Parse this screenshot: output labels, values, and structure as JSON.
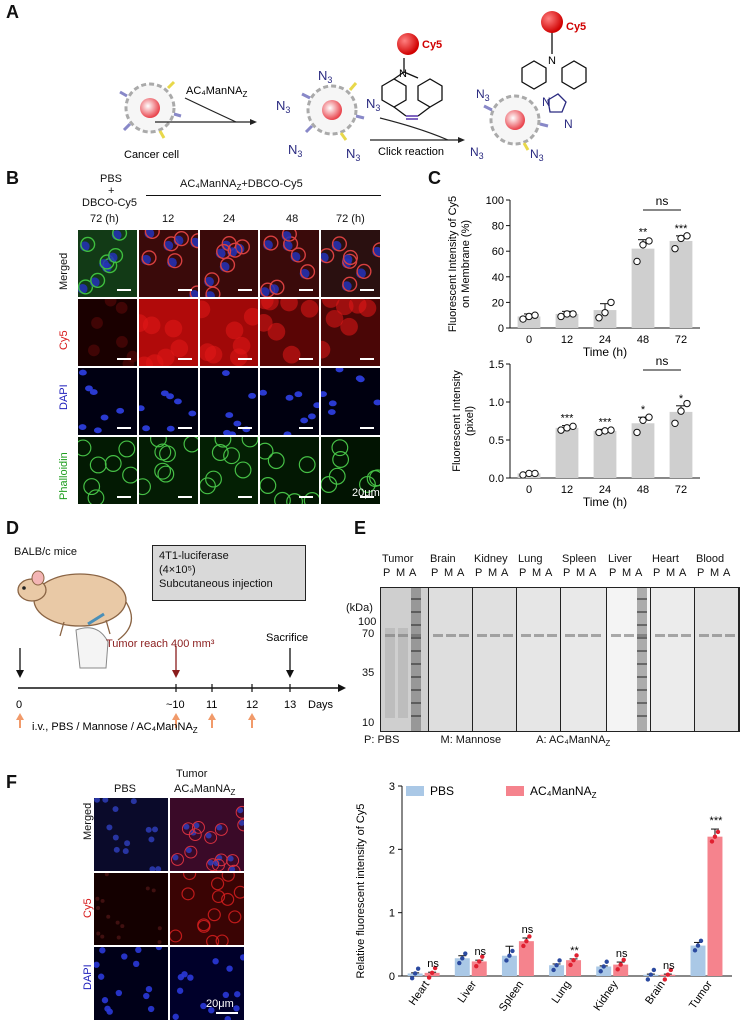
{
  "panelA": {
    "letter": "A",
    "reagent": "AC₄ManNA",
    "reagent_sub": "Z",
    "cancer_cell": "Cancer cell",
    "n3": "N",
    "n3_sub": "3",
    "cy5": "Cy5",
    "click": "Click reaction",
    "N": "N"
  },
  "panelB": {
    "letter": "B",
    "control_label_1": "PBS",
    "control_label_2": "+",
    "control_label_3": "DBCO-Cy5",
    "treat_label": "AC₄ManNA",
    "treat_sub": "Z",
    "treat_tail": "+DBCO-Cy5",
    "times": [
      "72 (h)",
      "12",
      "24",
      "48",
      "72 (h)"
    ],
    "rows": [
      "Merged",
      "Cy5",
      "DAPI",
      "Phalloidin"
    ],
    "scale": "20μm"
  },
  "panelC": {
    "letter": "C",
    "top_chart": {
      "type": "bar",
      "ylabel_1": "Fluorescent Intensity of Cy5",
      "ylabel_2": "on Membrane (%)",
      "xlabel": "Time (h)",
      "categories": [
        "0",
        "12",
        "24",
        "48",
        "72"
      ],
      "values": [
        9,
        11,
        14,
        62,
        68
      ],
      "errors": [
        2,
        2,
        5,
        7,
        4
      ],
      "points": [
        [
          7,
          9,
          10
        ],
        [
          9,
          11,
          11
        ],
        [
          8,
          12,
          20
        ],
        [
          52,
          65,
          68
        ],
        [
          62,
          70,
          72
        ]
      ],
      "sig": [
        "",
        "",
        "",
        "**",
        "***"
      ],
      "bracket": "ns",
      "ylim": [
        0,
        100
      ],
      "yticks": [
        "0",
        "20",
        "40",
        "60",
        "80",
        "100"
      ]
    },
    "bottom_chart": {
      "type": "bar",
      "ylabel_1": "Fluorescent Intensity",
      "ylabel_2": "(pixel)",
      "xlabel": "Time (h)",
      "categories": [
        "0",
        "12",
        "24",
        "48",
        "72"
      ],
      "values": [
        0.06,
        0.66,
        0.62,
        0.72,
        0.87
      ],
      "errors": [
        0.01,
        0.03,
        0.02,
        0.08,
        0.08
      ],
      "points": [
        [
          0.04,
          0.06,
          0.06
        ],
        [
          0.63,
          0.66,
          0.68
        ],
        [
          0.6,
          0.62,
          0.63
        ],
        [
          0.6,
          0.76,
          0.8
        ],
        [
          0.72,
          0.88,
          0.98
        ]
      ],
      "sig": [
        "",
        "***",
        "***",
        "*",
        "*"
      ],
      "bracket": "ns",
      "ylim": [
        0,
        1.5
      ],
      "yticks": [
        "0.0",
        "0.5",
        "1.0",
        "1.5"
      ]
    }
  },
  "panelD": {
    "letter": "D",
    "mice": "BALB/c mice",
    "box_1": "4T1-luciferase",
    "box_2": "(4×10⁵)",
    "box_3": "Subcutaneous injection",
    "tumor": "Tumor reach 400 mm³",
    "sacrifice": "Sacrifice",
    "ticks": [
      "0",
      "~10",
      "11",
      "12",
      "13"
    ],
    "days": "Days",
    "iv": "i.v., PBS / Mannose / AC₄ManNA",
    "iv_sub": "Z"
  },
  "panelE": {
    "letter": "E",
    "tissues": [
      "Tumor",
      "Brain",
      "Kidney",
      "Lung",
      "Spleen",
      "Liver",
      "Heart",
      "Blood"
    ],
    "lanes": [
      "P",
      "M",
      "A"
    ],
    "kda": "(kDa)",
    "markers": [
      "100",
      "70",
      "35",
      "10"
    ],
    "legend_p": "P: PBS",
    "legend_m": "M: Mannose",
    "legend_a": "A: AC₄ManNA",
    "legend_a_sub": "Z"
  },
  "panelF": {
    "letter": "F",
    "tumor": "Tumor",
    "col_pbs": "PBS",
    "col_ac": "AC₄ManNA",
    "col_ac_sub": "Z",
    "rows": [
      "Merged",
      "Cy5",
      "DAPI"
    ],
    "scale": "20μm",
    "chart": {
      "type": "bar",
      "ylabel": "Relative fluorescent intensity of Cy5",
      "categories": [
        "Heart",
        "Liver",
        "Spleen",
        "Lung",
        "Kidney",
        "Brain",
        "Tumor"
      ],
      "series": [
        {
          "name": "PBS",
          "color": "#aac8e6",
          "values": [
            0.04,
            0.28,
            0.32,
            0.17,
            0.15,
            0.02,
            0.48
          ],
          "errors": [
            0.01,
            0.04,
            0.15,
            0.02,
            0.01,
            0.01,
            0.05
          ]
        },
        {
          "name": "AC₄ManNA",
          "name_sub": "Z",
          "color": "#f5838d",
          "values": [
            0.05,
            0.23,
            0.55,
            0.25,
            0.18,
            0.02,
            2.2
          ],
          "errors": [
            0.01,
            0.02,
            0.05,
            0.02,
            0.04,
            0.01,
            0.12
          ]
        }
      ],
      "sig": [
        "ns",
        "ns",
        "ns",
        "**",
        "ns",
        "ns",
        "***"
      ],
      "ylim": [
        0,
        3
      ],
      "yticks": [
        "0",
        "1",
        "2",
        "3"
      ]
    }
  }
}
